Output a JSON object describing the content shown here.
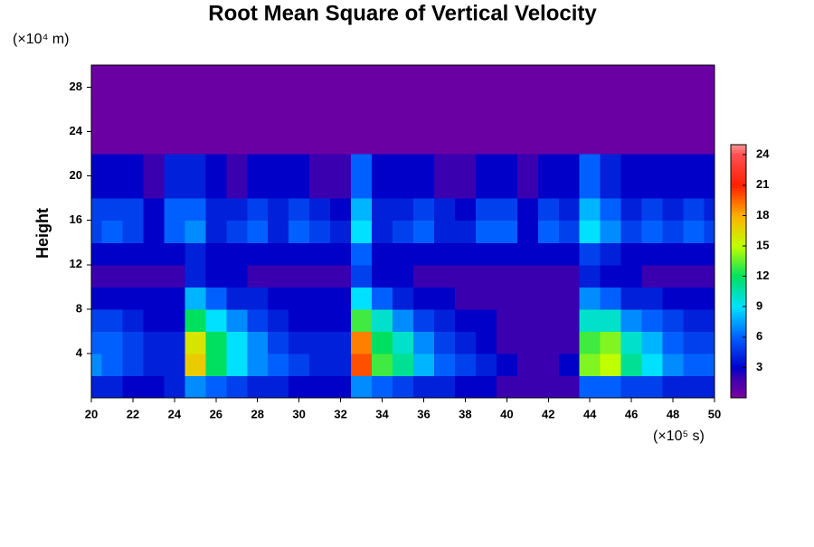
{
  "chart_data": {
    "type": "heatmap",
    "title": "Root Mean Square of Vertical Velocity",
    "y_label": "Height",
    "y_unit": "(×10⁴ m)",
    "x_unit": "(×10⁵ s)",
    "x": [
      20,
      21,
      22,
      23,
      24,
      25,
      26,
      27,
      28,
      29,
      30,
      31,
      32,
      33,
      34,
      35,
      36,
      37,
      38,
      39,
      40,
      41,
      42,
      43,
      44,
      45,
      46,
      47,
      48,
      49,
      50
    ],
    "y": [
      1,
      3,
      5,
      7,
      9,
      11,
      13,
      15,
      17,
      19,
      25
    ],
    "z": [
      [
        4,
        4,
        3,
        3,
        4,
        7,
        6,
        5,
        4,
        4,
        3,
        3,
        3,
        7,
        6,
        5,
        4,
        4,
        3,
        3,
        2,
        2,
        2,
        2,
        6,
        6,
        5,
        5,
        4,
        4,
        4
      ],
      [
        7,
        6,
        5,
        4,
        4,
        17,
        12,
        9,
        7,
        6,
        5,
        4,
        4,
        20,
        13,
        11,
        8,
        6,
        5,
        4,
        3,
        2,
        2,
        3,
        14,
        15,
        11,
        9,
        7,
        6,
        6
      ],
      [
        6,
        6,
        5,
        4,
        4,
        16,
        12,
        9,
        7,
        5,
        4,
        4,
        4,
        19,
        12,
        10,
        7,
        5,
        4,
        3,
        2,
        2,
        2,
        2,
        13,
        14,
        10,
        8,
        6,
        5,
        5
      ],
      [
        5,
        5,
        4,
        3,
        3,
        12,
        9,
        7,
        5,
        4,
        3,
        3,
        3,
        13,
        10,
        7,
        5,
        4,
        3,
        3,
        2,
        2,
        2,
        2,
        10,
        10,
        7,
        6,
        5,
        4,
        4
      ],
      [
        3,
        3,
        3,
        3,
        3,
        8,
        6,
        4,
        4,
        3,
        3,
        3,
        3,
        9,
        6,
        4,
        3,
        3,
        2,
        2,
        2,
        2,
        2,
        2,
        7,
        6,
        4,
        4,
        3,
        3,
        3
      ],
      [
        2,
        2,
        2,
        2,
        2,
        4,
        3,
        3,
        2,
        2,
        2,
        2,
        2,
        5,
        3,
        3,
        2,
        2,
        2,
        2,
        2,
        2,
        2,
        2,
        4,
        3,
        3,
        2,
        2,
        2,
        2
      ],
      [
        3,
        3,
        3,
        3,
        3,
        4,
        3,
        3,
        3,
        3,
        3,
        3,
        3,
        6,
        3,
        3,
        3,
        3,
        3,
        3,
        3,
        3,
        3,
        3,
        5,
        4,
        3,
        3,
        3,
        3,
        3
      ],
      [
        5,
        6,
        5,
        3,
        6,
        7,
        4,
        5,
        6,
        4,
        6,
        5,
        4,
        9,
        4,
        5,
        6,
        4,
        4,
        6,
        6,
        3,
        6,
        5,
        9,
        7,
        5,
        6,
        5,
        6,
        5
      ],
      [
        5,
        5,
        5,
        3,
        6,
        6,
        4,
        4,
        5,
        4,
        5,
        4,
        3,
        8,
        4,
        4,
        5,
        4,
        3,
        5,
        5,
        3,
        5,
        4,
        8,
        6,
        4,
        5,
        4,
        5,
        4
      ],
      [
        3,
        3,
        3,
        2,
        4,
        4,
        3,
        2,
        3,
        3,
        3,
        2,
        2,
        6,
        3,
        3,
        3,
        2,
        2,
        3,
        3,
        2,
        3,
        3,
        6,
        4,
        3,
        3,
        3,
        3,
        3
      ],
      [
        0.5,
        0.5,
        0.5,
        0.5,
        0.5,
        0.5,
        0.5,
        0.5,
        0.5,
        0.5,
        0.5,
        0.5,
        0.5,
        0.5,
        0.5,
        0.5,
        0.5,
        0.5,
        0.5,
        0.5,
        0.5,
        0.5,
        0.5,
        0.5,
        0.5,
        0.5,
        0.5,
        0.5,
        0.5,
        0.5,
        0.5
      ]
    ],
    "xlim": [
      20,
      50
    ],
    "xticks": [
      20,
      22,
      24,
      26,
      28,
      30,
      32,
      34,
      36,
      38,
      40,
      42,
      44,
      46,
      48,
      50
    ],
    "ylim": [
      0,
      30
    ],
    "yticks": [
      4,
      8,
      12,
      16,
      20,
      24,
      28
    ],
    "zlim": [
      0,
      25
    ],
    "zticks": [
      3,
      6,
      9,
      12,
      15,
      18,
      21,
      24
    ],
    "colorscale": [
      {
        "value": 0,
        "color": "#7a00a0"
      },
      {
        "value": 2,
        "color": "#3a00b0"
      },
      {
        "value": 3,
        "color": "#0000c8"
      },
      {
        "value": 6,
        "color": "#0060ff"
      },
      {
        "value": 9,
        "color": "#00e0ff"
      },
      {
        "value": 12,
        "color": "#00e060"
      },
      {
        "value": 15,
        "color": "#c0ff00"
      },
      {
        "value": 18,
        "color": "#ffb000"
      },
      {
        "value": 21,
        "color": "#ff2000"
      },
      {
        "value": 24,
        "color": "#ff5050"
      },
      {
        "value": 25,
        "color": "#ff9090"
      }
    ]
  }
}
